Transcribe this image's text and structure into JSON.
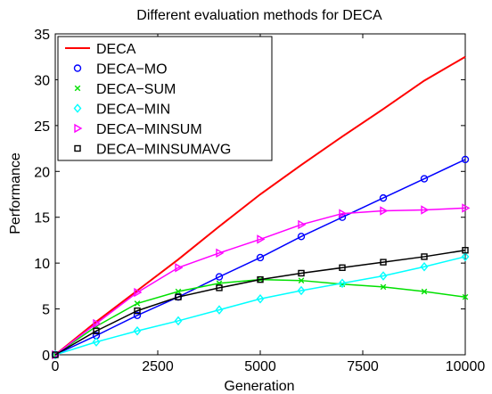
{
  "chart_data": {
    "type": "line",
    "title": "Different evaluation methods for DECA",
    "xlabel": "Generation",
    "ylabel": "Performance",
    "xlim": [
      0,
      10000
    ],
    "ylim": [
      0,
      35
    ],
    "xticks": [
      0,
      2500,
      5000,
      7500,
      10000
    ],
    "xtick_labels": [
      "0",
      "2500",
      "5000",
      "7500",
      "10000"
    ],
    "yticks": [
      0,
      5,
      10,
      15,
      20,
      25,
      30,
      35
    ],
    "ytick_labels": [
      "0",
      "5",
      "10",
      "15",
      "20",
      "25",
      "30",
      "35"
    ],
    "grid": false,
    "legend_position": "top-left",
    "series": [
      {
        "name": "DECA",
        "color": "#ff0000",
        "marker": "none",
        "x": [
          0,
          1000,
          2000,
          3000,
          4000,
          5000,
          6000,
          7000,
          8000,
          9000,
          10000
        ],
        "values": [
          0,
          3.6,
          7.0,
          10.4,
          14.0,
          17.5,
          20.7,
          23.8,
          26.8,
          29.9,
          32.5
        ]
      },
      {
        "name": "DECA−MO",
        "color": "#0000ff",
        "marker": "circle",
        "x": [
          0,
          1000,
          2000,
          3000,
          4000,
          5000,
          6000,
          7000,
          8000,
          9000,
          10000
        ],
        "values": [
          0,
          2.1,
          4.3,
          6.3,
          8.5,
          10.6,
          12.9,
          15.0,
          17.1,
          19.2,
          21.3
        ]
      },
      {
        "name": "DECA−SUM",
        "color": "#00e000",
        "marker": "x",
        "x": [
          0,
          1000,
          2000,
          3000,
          4000,
          5000,
          6000,
          7000,
          8000,
          9000,
          10000
        ],
        "values": [
          0,
          3.1,
          5.6,
          6.9,
          7.8,
          8.2,
          8.1,
          7.7,
          7.4,
          6.9,
          6.3
        ]
      },
      {
        "name": "DECA−MIN",
        "color": "#00ffff",
        "marker": "diamond",
        "x": [
          0,
          1000,
          2000,
          3000,
          4000,
          5000,
          6000,
          7000,
          8000,
          9000,
          10000
        ],
        "values": [
          0,
          1.4,
          2.6,
          3.7,
          4.9,
          6.1,
          7.0,
          7.8,
          8.6,
          9.6,
          10.7
        ]
      },
      {
        "name": "DECA−MINSUM",
        "color": "#ff00ff",
        "marker": "triangle-right",
        "x": [
          0,
          1000,
          2000,
          3000,
          4000,
          5000,
          6000,
          7000,
          8000,
          9000,
          10000
        ],
        "values": [
          0,
          3.4,
          6.8,
          9.5,
          11.1,
          12.6,
          14.2,
          15.4,
          15.7,
          15.8,
          16.0
        ]
      },
      {
        "name": "DECA−MINSUMAVG",
        "color": "#000000",
        "marker": "square",
        "x": [
          0,
          1000,
          2000,
          3000,
          4000,
          5000,
          6000,
          7000,
          8000,
          9000,
          10000
        ],
        "values": [
          0,
          2.6,
          4.8,
          6.3,
          7.3,
          8.2,
          8.9,
          9.5,
          10.1,
          10.7,
          11.4
        ]
      }
    ]
  }
}
